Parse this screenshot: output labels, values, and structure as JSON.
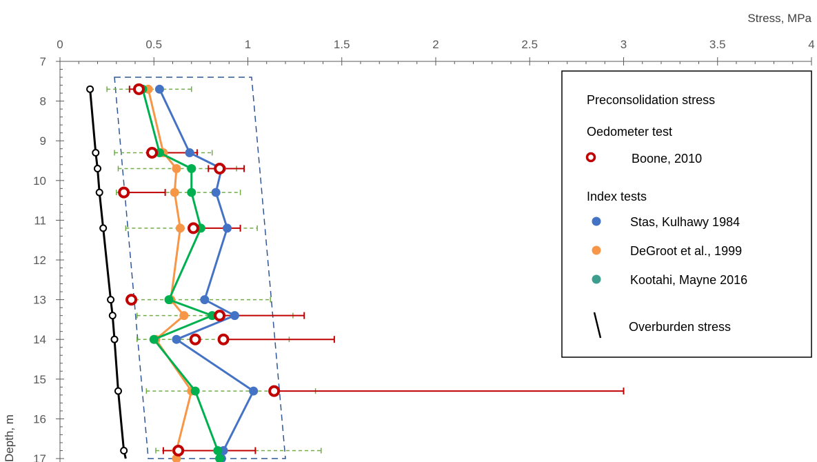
{
  "chart_data": {
    "type": "scatter",
    "title": "",
    "xlabel": "Stress, MPa",
    "ylabel": "Depth, m",
    "xlim": [
      0,
      4
    ],
    "ylim": [
      7,
      17
    ],
    "y_inverted": true,
    "x_axis_position": "top",
    "x_ticks": [
      "0",
      "0.5",
      "1",
      "1.5",
      "2",
      "2.5",
      "3",
      "3.5",
      "4"
    ],
    "y_ticks": [
      "7",
      "8",
      "9",
      "10",
      "11",
      "12",
      "13",
      "14",
      "15",
      "16",
      "17"
    ],
    "grid": false,
    "legend": {
      "position": "top-right",
      "headers": {
        "main": "Preconsolidation stress",
        "oedometer": "Oedometer test",
        "index": "Index tests"
      },
      "entries": {
        "boone": "Boone, 2010",
        "stas": "Stas, Kulhawy 1984",
        "degroot": "DeGroot et al., 1999",
        "kootahi": "Kootahi, Mayne 2016",
        "overburden": "Overburden stress"
      }
    },
    "series": {
      "overburden": {
        "name": "Overburden stress",
        "color": "#000000",
        "points": [
          {
            "x": 0.16,
            "y": 7.7
          },
          {
            "x": 0.19,
            "y": 9.3
          },
          {
            "x": 0.2,
            "y": 9.7
          },
          {
            "x": 0.21,
            "y": 10.3
          },
          {
            "x": 0.23,
            "y": 11.2
          },
          {
            "x": 0.27,
            "y": 13.0
          },
          {
            "x": 0.28,
            "y": 13.4
          },
          {
            "x": 0.29,
            "y": 14.0
          },
          {
            "x": 0.31,
            "y": 15.3
          },
          {
            "x": 0.34,
            "y": 16.8
          },
          {
            "x": 0.35,
            "y": 17.0
          }
        ]
      },
      "stas": {
        "name": "Stas, Kulhawy 1984",
        "color": "#4472C4",
        "points": [
          {
            "x": 0.53,
            "y": 7.7
          },
          {
            "x": 0.69,
            "y": 9.3
          },
          {
            "x": 0.86,
            "y": 9.7
          },
          {
            "x": 0.83,
            "y": 10.3
          },
          {
            "x": 0.89,
            "y": 11.2
          },
          {
            "x": 0.77,
            "y": 13.0
          },
          {
            "x": 0.93,
            "y": 13.4
          },
          {
            "x": 0.62,
            "y": 14.0
          },
          {
            "x": 1.03,
            "y": 15.3
          },
          {
            "x": 0.87,
            "y": 16.8
          },
          {
            "x": 0.86,
            "y": 17.0
          }
        ]
      },
      "degroot": {
        "name": "DeGroot et al., 1999",
        "color": "#F79646",
        "points": [
          {
            "x": 0.47,
            "y": 7.7
          },
          {
            "x": 0.55,
            "y": 9.3
          },
          {
            "x": 0.62,
            "y": 9.7
          },
          {
            "x": 0.61,
            "y": 10.3
          },
          {
            "x": 0.64,
            "y": 11.2
          },
          {
            "x": 0.59,
            "y": 13.0
          },
          {
            "x": 0.66,
            "y": 13.4
          },
          {
            "x": 0.51,
            "y": 14.0
          },
          {
            "x": 0.7,
            "y": 15.3
          },
          {
            "x": 0.62,
            "y": 16.8
          },
          {
            "x": 0.62,
            "y": 17.0
          }
        ]
      },
      "kootahi": {
        "name": "Kootahi, Mayne 2016",
        "color": "#00B050",
        "legend_color": "#3E9E8E",
        "points": [
          {
            "x": 0.44,
            "y": 7.7
          },
          {
            "x": 0.53,
            "y": 9.3
          },
          {
            "x": 0.7,
            "y": 9.7
          },
          {
            "x": 0.7,
            "y": 10.3
          },
          {
            "x": 0.75,
            "y": 11.2
          },
          {
            "x": 0.58,
            "y": 13.0
          },
          {
            "x": 0.81,
            "y": 13.4
          },
          {
            "x": 0.5,
            "y": 14.0
          },
          {
            "x": 0.72,
            "y": 15.3
          },
          {
            "x": 0.84,
            "y": 16.8
          },
          {
            "x": 0.85,
            "y": 17.0
          }
        ]
      },
      "boone": {
        "name": "Boone, 2010",
        "color": "#C00000",
        "points": [
          {
            "x": 0.42,
            "y": 7.7,
            "xerr": [
              0.37,
              0.42
            ]
          },
          {
            "x": 0.49,
            "y": 9.3,
            "xerr": [
              0.49,
              0.73
            ]
          },
          {
            "x": 0.85,
            "y": 9.7,
            "xerr": [
              0.79,
              0.98
            ]
          },
          {
            "x": 0.34,
            "y": 10.3,
            "xerr": [
              0.34,
              0.56
            ]
          },
          {
            "x": 0.71,
            "y": 11.2,
            "xerr": [
              0.71,
              0.96
            ]
          },
          {
            "x": 0.38,
            "y": 13.0,
            "xerr": [
              0.38,
              0.38
            ]
          },
          {
            "x": 0.85,
            "y": 13.4,
            "xerr": [
              0.8,
              1.3
            ]
          },
          {
            "x": 0.72,
            "y": 14.0,
            "xerr": [
              0.72,
              0.72
            ]
          },
          {
            "x": 0.87,
            "y": 14.0,
            "xerr": [
              0.87,
              1.46
            ]
          },
          {
            "x": 1.14,
            "y": 15.3,
            "xerr": [
              1.14,
              3.0
            ]
          },
          {
            "x": 0.63,
            "y": 16.8,
            "xerr": [
              0.55,
              1.04
            ]
          }
        ]
      },
      "index_ranges": {
        "color": "#70AD47",
        "ranges": [
          {
            "y": 7.7,
            "x": [
              0.25,
              0.7
            ]
          },
          {
            "y": 9.3,
            "x": [
              0.29,
              0.81
            ]
          },
          {
            "y": 9.7,
            "x": [
              0.31,
              0.94
            ]
          },
          {
            "y": 10.3,
            "x": [
              0.3,
              0.96
            ]
          },
          {
            "y": 11.2,
            "x": [
              0.35,
              1.05
            ]
          },
          {
            "y": 13.0,
            "x": [
              0.4,
              1.12
            ]
          },
          {
            "y": 13.4,
            "x": [
              0.41,
              1.24
            ]
          },
          {
            "y": 14.0,
            "x": [
              0.41,
              1.22
            ]
          },
          {
            "y": 15.3,
            "x": [
              0.46,
              1.36
            ]
          },
          {
            "y": 16.8,
            "x": [
              0.51,
              1.39
            ]
          }
        ]
      },
      "envelope": {
        "color": "#2F5597",
        "points": [
          {
            "x": 0.29,
            "y": 7.4
          },
          {
            "x": 1.02,
            "y": 7.4
          },
          {
            "x": 1.2,
            "y": 17.0
          },
          {
            "x": 0.47,
            "y": 17.0
          }
        ]
      }
    }
  }
}
